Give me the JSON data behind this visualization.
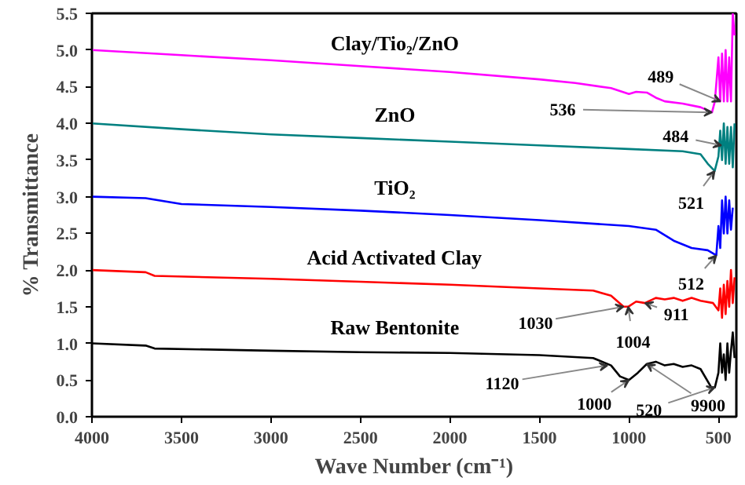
{
  "chart_data": {
    "type": "line",
    "xlabel": "Wave Number (cm⁻¹)",
    "ylabel": "% Transmittance",
    "xlim": [
      4000,
      400
    ],
    "ylim": [
      0,
      5.5
    ],
    "xticks": [
      4000,
      3500,
      3000,
      2500,
      2000,
      1500,
      1000,
      500
    ],
    "yticks": [
      {
        "value": 0,
        "label": "0.0"
      },
      0.5,
      {
        "value": 1,
        "label": "1.0"
      },
      1.5,
      {
        "value": 2,
        "label": "2.0"
      },
      2.5,
      {
        "value": 3,
        "label": "3.0"
      },
      3.5,
      {
        "value": 4,
        "label": "4.0"
      },
      4.5,
      {
        "value": 5,
        "label": "5.0"
      },
      5.5
    ],
    "grid": false,
    "marker": "none",
    "line_style": "solid",
    "series": [
      {
        "name": "Clay/Tio₂/ZnO",
        "color": "#ff00ff",
        "x": [
          4000,
          3500,
          3000,
          2500,
          2000,
          1500,
          1300,
          1100,
          1000,
          960,
          900,
          850,
          800,
          700,
          600,
          536,
          520,
          500,
          490,
          480,
          470,
          460,
          450,
          440,
          430,
          420,
          410
        ],
        "values": [
          5.0,
          4.93,
          4.86,
          4.78,
          4.7,
          4.6,
          4.55,
          4.48,
          4.4,
          4.43,
          4.42,
          4.35,
          4.3,
          4.27,
          4.22,
          4.15,
          4.3,
          4.9,
          4.3,
          4.95,
          4.3,
          5.0,
          4.3,
          4.9,
          4.3,
          5.5,
          5.2
        ]
      },
      {
        "name": "ZnO",
        "color": "#008080",
        "x": [
          4000,
          3500,
          3000,
          2500,
          2000,
          1500,
          1000,
          700,
          600,
          560,
          521,
          500,
          490,
          480,
          470,
          460,
          450,
          440,
          430,
          420,
          410
        ],
        "values": [
          4.0,
          3.92,
          3.85,
          3.8,
          3.75,
          3.7,
          3.65,
          3.62,
          3.58,
          3.45,
          3.35,
          3.55,
          3.9,
          3.5,
          4.0,
          3.45,
          3.95,
          3.45,
          3.95,
          3.4,
          4.0
        ]
      },
      {
        "name": "TiO₂",
        "color": "#0000ff",
        "x": [
          4000,
          3700,
          3500,
          3000,
          2500,
          2000,
          1500,
          1000,
          850,
          750,
          650,
          560,
          512,
          500,
          490,
          480,
          470,
          460,
          450,
          440,
          430,
          420
        ],
        "values": [
          3.0,
          2.98,
          2.9,
          2.86,
          2.81,
          2.75,
          2.68,
          2.6,
          2.55,
          2.4,
          2.3,
          2.27,
          2.2,
          2.6,
          2.3,
          2.95,
          2.5,
          3.0,
          2.5,
          2.95,
          2.55,
          2.85
        ]
      },
      {
        "name": "Acid Activated Clay",
        "color": "#ff0000",
        "x": [
          4000,
          3700,
          3650,
          3000,
          2500,
          2000,
          1500,
          1200,
          1100,
          1030,
          1004,
          960,
          911,
          850,
          800,
          750,
          700,
          650,
          600,
          530,
          500,
          490,
          480,
          470,
          460,
          450,
          440,
          430,
          420,
          410
        ],
        "values": [
          2.0,
          1.97,
          1.92,
          1.88,
          1.84,
          1.8,
          1.75,
          1.72,
          1.65,
          1.5,
          1.5,
          1.57,
          1.55,
          1.62,
          1.6,
          1.62,
          1.58,
          1.62,
          1.58,
          1.55,
          1.45,
          1.75,
          1.35,
          1.8,
          1.4,
          1.85,
          1.5,
          2.0,
          1.55,
          1.9
        ]
      },
      {
        "name": "Raw Bentonite",
        "color": "#000000",
        "x": [
          4000,
          3700,
          3650,
          3000,
          2500,
          2000,
          1500,
          1200,
          1100,
          1050,
          1000,
          950,
          900,
          850,
          800,
          750,
          700,
          650,
          600,
          540,
          520,
          500,
          490,
          480,
          470,
          460,
          450,
          440,
          430,
          420,
          410
        ],
        "values": [
          1.0,
          0.97,
          0.93,
          0.9,
          0.88,
          0.87,
          0.84,
          0.8,
          0.7,
          0.55,
          0.5,
          0.6,
          0.72,
          0.75,
          0.7,
          0.72,
          0.68,
          0.7,
          0.65,
          0.4,
          0.4,
          0.6,
          1.0,
          0.6,
          0.85,
          0.5,
          1.0,
          0.6,
          0.9,
          1.15,
          0.8
        ]
      }
    ],
    "annotations": [
      {
        "text": "489",
        "x": 489,
        "y": 4.3
      },
      {
        "text": "536",
        "x": 536,
        "y": 4.15
      },
      {
        "text": "484",
        "x": 484,
        "y": 3.7
      },
      {
        "text": "521",
        "x": 521,
        "y": 3.35
      },
      {
        "text": "512",
        "x": 512,
        "y": 2.2
      },
      {
        "text": "1030",
        "x": 1030,
        "y": 1.5
      },
      {
        "text": "911",
        "x": 911,
        "y": 1.55
      },
      {
        "text": "1004",
        "x": 1004,
        "y": 1.5
      },
      {
        "text": "1120",
        "x": 1120,
        "y": 0.7
      },
      {
        "text": "1000",
        "x": 1000,
        "y": 0.5
      },
      {
        "text": "520",
        "x": 520,
        "y": 0.4
      },
      {
        "text": "9900",
        "x": 900,
        "y": 0.72
      }
    ]
  }
}
